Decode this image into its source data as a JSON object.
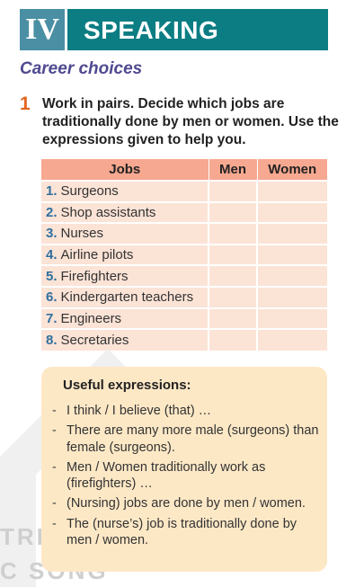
{
  "header": {
    "numeral": "IV",
    "title": "SPEAKING"
  },
  "subtitle": "Career choices",
  "task": {
    "number": "1",
    "text": "Work in pairs. Decide which jobs are traditionally done by men or women. Use the expressions given to help you."
  },
  "table": {
    "headers": [
      "Jobs",
      "Men",
      "Women"
    ],
    "rows": [
      {
        "num": "1.",
        "job": "Surgeons"
      },
      {
        "num": "2.",
        "job": "Shop assistants"
      },
      {
        "num": "3.",
        "job": "Nurses"
      },
      {
        "num": "4.",
        "job": "Airline pilots"
      },
      {
        "num": "5.",
        "job": "Firefighters"
      },
      {
        "num": "6.",
        "job": "Kindergarten teachers"
      },
      {
        "num": "7.",
        "job": "Engineers"
      },
      {
        "num": "8.",
        "job": "Secretaries"
      }
    ]
  },
  "expressions": {
    "title": "Useful expressions:",
    "items": [
      "I think / I believe (that) …",
      "There are many more male (surgeons) than female (surgeons).",
      "Men / Women traditionally work as (firefighters) …",
      "(Nursing) jobs are done by men / women.",
      "The (nurse’s) job is traditionally done by men / women."
    ]
  },
  "watermark": {
    "line1": "TRI T",
    "line2": "C SỐNG"
  },
  "colors": {
    "numeral_bg": "#4a8fa3",
    "title_bg": "#0b7d83",
    "subtitle": "#4f4a91",
    "task_number": "#e2641e",
    "table_header": "#f7a890",
    "table_cell": "#fbe3d6",
    "box_bg": "#fde8c6"
  }
}
